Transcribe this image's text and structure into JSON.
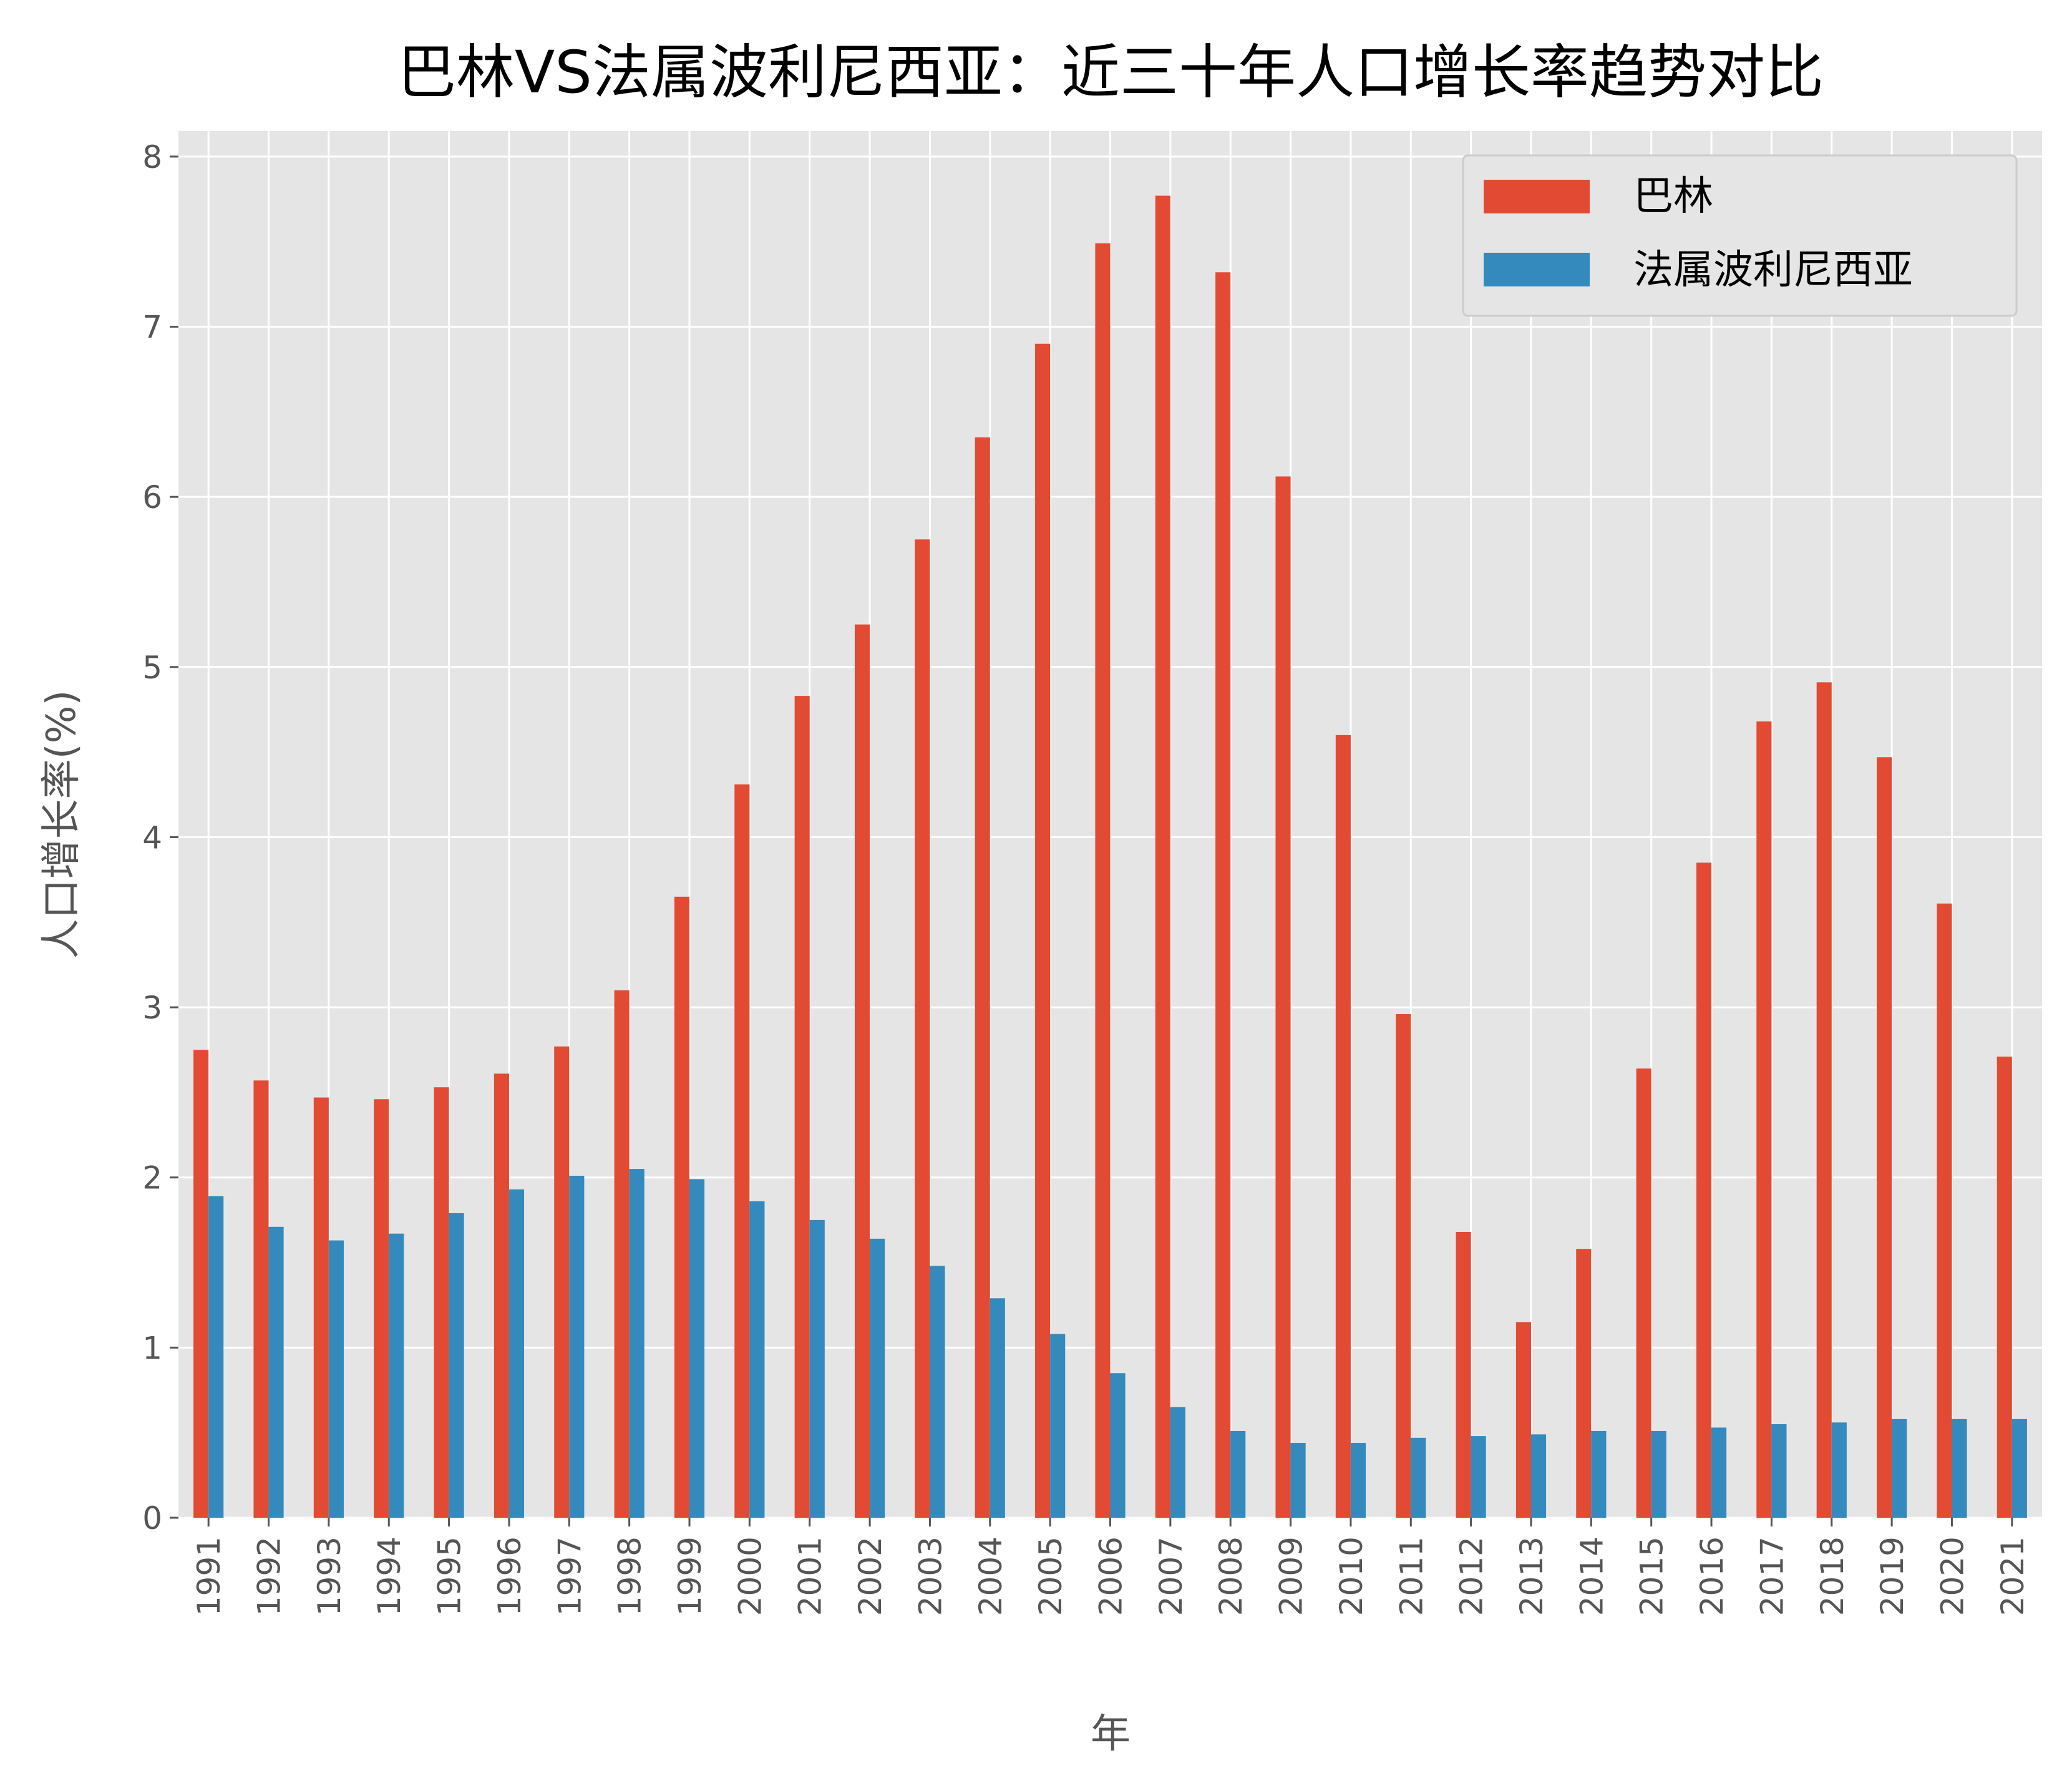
{
  "chart_data": {
    "type": "bar",
    "title": "巴林VS法属波利尼西亚：近三十年人口增长率趋势对比",
    "xlabel": "年",
    "ylabel": "人口增长率(%)",
    "ylim": [
      0,
      8.15
    ],
    "yticks": [
      0,
      1,
      2,
      3,
      4,
      5,
      6,
      7,
      8
    ],
    "grid": true,
    "legend_position": "top-right",
    "categories": [
      "1991",
      "1992",
      "1993",
      "1994",
      "1995",
      "1996",
      "1997",
      "1998",
      "1999",
      "2000",
      "2001",
      "2002",
      "2003",
      "2004",
      "2005",
      "2006",
      "2007",
      "2008",
      "2009",
      "2010",
      "2011",
      "2012",
      "2013",
      "2014",
      "2015",
      "2016",
      "2017",
      "2018",
      "2019",
      "2020",
      "2021"
    ],
    "series": [
      {
        "name": "巴林",
        "color": "#E24A33",
        "values": [
          2.75,
          2.57,
          2.47,
          2.46,
          2.53,
          2.61,
          2.77,
          3.1,
          3.65,
          4.31,
          4.83,
          5.25,
          5.75,
          6.35,
          6.9,
          7.49,
          7.77,
          7.32,
          6.12,
          4.6,
          2.96,
          1.68,
          1.15,
          1.58,
          2.64,
          3.85,
          4.68,
          4.91,
          4.47,
          3.61,
          2.71
        ]
      },
      {
        "name": "法属波利尼西亚",
        "color": "#348ABD",
        "values": [
          1.89,
          1.71,
          1.63,
          1.67,
          1.79,
          1.93,
          2.01,
          2.05,
          1.99,
          1.86,
          1.75,
          1.64,
          1.48,
          1.29,
          1.08,
          0.85,
          0.65,
          0.51,
          0.44,
          0.44,
          0.47,
          0.48,
          0.49,
          0.51,
          0.51,
          0.53,
          0.55,
          0.56,
          0.58,
          0.58,
          0.58
        ]
      }
    ]
  },
  "colors": {
    "plot_background": "#E5E5E5",
    "grid": "#FFFFFF",
    "tick_text": "#555555"
  }
}
